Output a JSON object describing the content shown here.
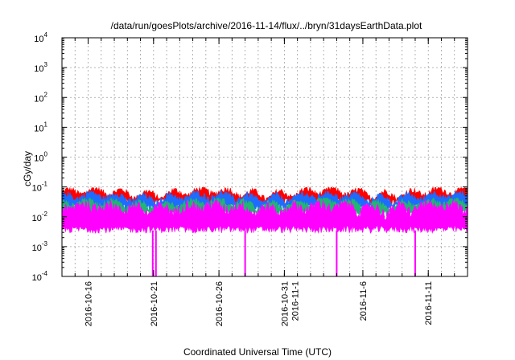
{
  "chart_data": {
    "type": "line",
    "title": "/data/run/goesPlots/archive/2016-11-14/flux/../bryn/31daysEarthData.plot",
    "xlabel": "Coordinated Universal Time (UTC)",
    "ylabel": "cGy/day",
    "y_scale": "log",
    "ylim": [
      0.0001,
      10000
    ],
    "xlim": [
      "2016-10-14",
      "2016-11-14"
    ],
    "grid": true,
    "y_ticks": [
      {
        "base": "10",
        "exp": "-4"
      },
      {
        "base": "10",
        "exp": "-3"
      },
      {
        "base": "10",
        "exp": "-2"
      },
      {
        "base": "10",
        "exp": "-1"
      },
      {
        "base": "10",
        "exp": "0"
      },
      {
        "base": "10",
        "exp": "1"
      },
      {
        "base": "10",
        "exp": "2"
      },
      {
        "base": "10",
        "exp": "3"
      },
      {
        "base": "10",
        "exp": "4"
      }
    ],
    "x_ticks": [
      {
        "date": "2016-10-16",
        "label": "2016-10-16"
      },
      {
        "date": "2016-10-21",
        "label": "2016-10-21"
      },
      {
        "date": "2016-10-26",
        "label": "2016-10-26"
      },
      {
        "date": "2016-10-31",
        "label": "2016-10-31",
        "label2": "2016-11-1"
      },
      {
        "date": "2016-11-06",
        "label": "2016-11-6"
      },
      {
        "date": "2016-11-11",
        "label": "2016-11-11"
      }
    ],
    "series": [
      {
        "color": "#ff0000",
        "approx_level": 0.05,
        "approx_peak": 0.08,
        "approx_floor": 0.03
      },
      {
        "color": "#1e6bff",
        "approx_level": 0.035,
        "approx_peak": 0.06,
        "approx_floor": 0.02
      },
      {
        "color": "#22b573",
        "approx_level": 0.022,
        "approx_peak": 0.035,
        "approx_floor": 0.012
      },
      {
        "color": "#ff00ff",
        "approx_level": 0.012,
        "approx_peak": 0.03,
        "approx_floor": 0.0035,
        "dropouts": [
          "2016-10-21",
          "2016-10-21",
          "2016-10-28",
          "2016-11-04",
          "2016-11-10"
        ]
      }
    ]
  }
}
